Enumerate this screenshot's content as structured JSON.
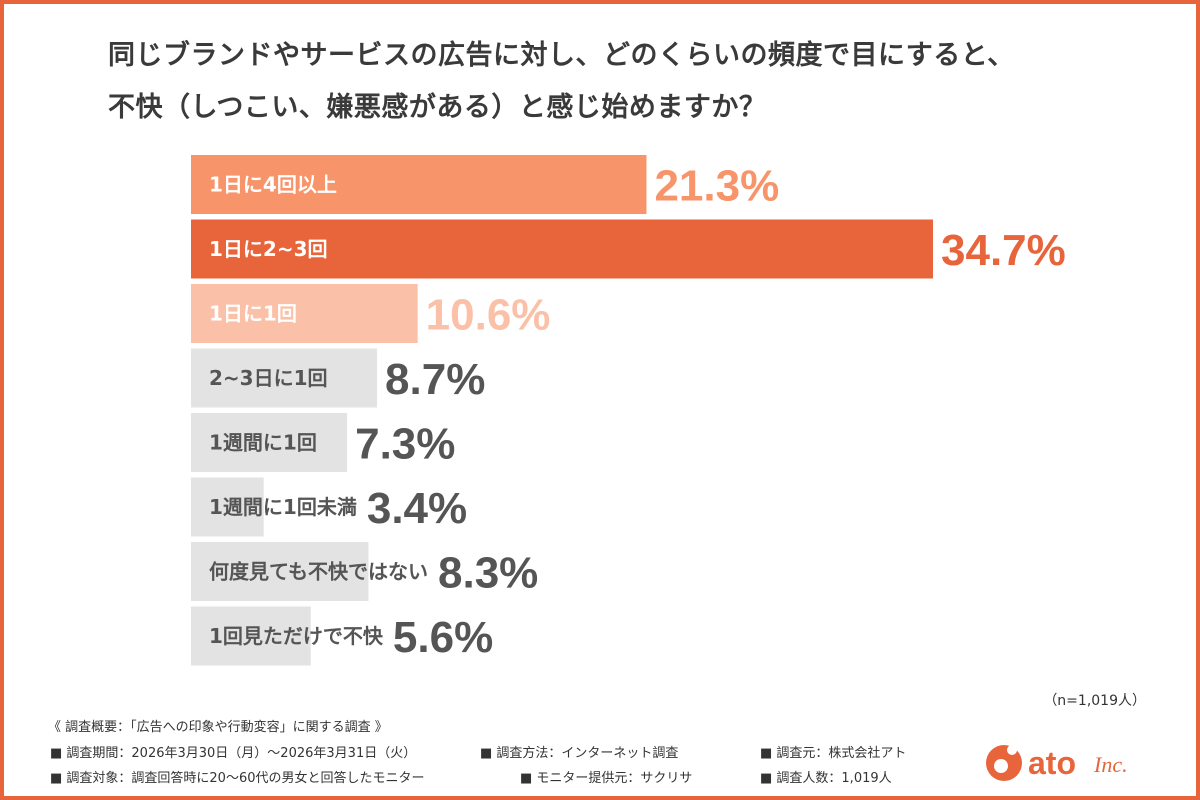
{
  "title_line1": "同じブランドやサービスの広告に対し、どのくらいの頻度で目にすると、",
  "title_line2": "不快（しつこい、嫌悪感がある）と感じ始めますか？",
  "chart_data": {
    "type": "bar",
    "orientation": "horizontal",
    "categories": [
      "1日に4回以上",
      "1日に2~3回",
      "1日に1回",
      "2~3日に1回",
      "1週間に1回",
      "1週間に1回未満",
      "何度見ても不快ではない",
      "1回見ただけで不快"
    ],
    "values": [
      21.3,
      34.7,
      10.6,
      8.7,
      7.3,
      3.4,
      8.3,
      5.6
    ],
    "value_labels": [
      "21.3%",
      "34.7%",
      "10.6%",
      "8.7%",
      "7.3%",
      "3.4%",
      "8.3%",
      "5.6%"
    ],
    "bar_colors": [
      "#F8946A",
      "#E8643A",
      "#FBC0A8",
      "#E3E3E3",
      "#E3E3E3",
      "#E3E3E3",
      "#E3E3E3",
      "#E3E3E3"
    ],
    "label_colors": [
      "#ffffff",
      "#ffffff",
      "#ffffff",
      "#555555",
      "#555555",
      "#555555",
      "#555555",
      "#555555"
    ],
    "value_colors": [
      "#F8946A",
      "#E8643A",
      "#FBC0A8",
      "#555555",
      "#555555",
      "#555555",
      "#555555",
      "#555555"
    ],
    "title": "同じブランドやサービスの広告に対し、どのくらいの頻度で目にすると、不快（しつこい、嫌悪感がある）と感じ始めますか？",
    "xlabel": "",
    "ylabel": "",
    "xlim": [
      0,
      34.7
    ],
    "grid": false,
    "legend": "none"
  },
  "n_note": "（n=1,019人）",
  "footer": {
    "summary": "《 調査概要：「広告への印象や行動変容」に関する調査 》",
    "period": "■ 調査期間：2026年3月30日（月）〜2026年3月31日（火）",
    "method": "■ 調査方法：インターネット調査",
    "source": "■ 調査元：株式会社アト",
    "target": "■ 調査対象：調査回答時に20〜60代の男女と回答したモニター",
    "provider": "■ モニター提供元：サクリサ",
    "count": "■ 調査人数：1,019人"
  },
  "logo": {
    "text": "ato",
    "suffix": "Inc.",
    "color": "#E8643A"
  },
  "colors": {
    "accent": "#E8643A",
    "text": "#3a3a3a"
  }
}
